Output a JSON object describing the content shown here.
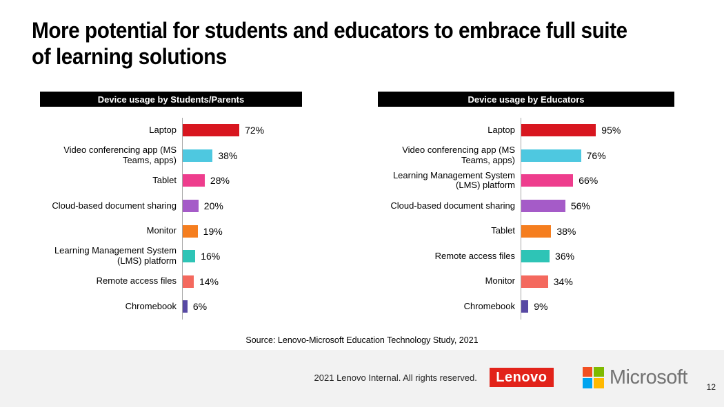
{
  "slide": {
    "title_lines": [
      "More potential for students and educators to embrace full suite",
      "of learning solutions"
    ],
    "source_note": "Source: Lenovo-Microsoft Education Technology Study, 2021",
    "footer": {
      "copyright": "2021 Lenovo Internal. All rights reserved.",
      "lenovo_logo_text": "Lenovo",
      "microsoft_logo_text": "Microsoft",
      "page_number": "12"
    }
  },
  "colors": {
    "header_bg": "#000000",
    "header_text": "#ffffff",
    "axis_line": "#a6a6a6",
    "footer_bg": "#f2f2f2",
    "lenovo_red": "#e2231a",
    "microsoft_gray": "#737373",
    "ms_squares": [
      "#f25022",
      "#7fba00",
      "#00a4ef",
      "#ffb900"
    ]
  },
  "chart_data": [
    {
      "type": "bar",
      "orientation": "horizontal",
      "title": "Device usage by Students/Parents",
      "categories": [
        "Laptop",
        "Video conferencing app (MS Teams, apps)",
        "Tablet",
        "Cloud-based document sharing",
        "Monitor",
        "Learning Management System (LMS) platform",
        "Remote access files",
        "Chromebook"
      ],
      "values": [
        72,
        38,
        28,
        20,
        19,
        16,
        14,
        6
      ],
      "value_labels": [
        "72%",
        "38%",
        "28%",
        "20%",
        "19%",
        "16%",
        "14%",
        "6%"
      ],
      "bar_colors": [
        "#d8161f",
        "#4ec8e0",
        "#ee3d8d",
        "#a55bc8",
        "#f57e1f",
        "#2ec4b6",
        "#f4695e",
        "#5849a4"
      ],
      "xlim": [
        0,
        100
      ],
      "grid": false,
      "legend": "none"
    },
    {
      "type": "bar",
      "orientation": "horizontal",
      "title": "Device usage by Educators",
      "categories": [
        "Laptop",
        "Video conferencing app (MS Teams, apps)",
        "Learning Management System (LMS) platform",
        "Cloud-based document sharing",
        "Tablet",
        "Remote access files",
        "Monitor",
        "Chromebook"
      ],
      "values": [
        95,
        76,
        66,
        56,
        38,
        36,
        34,
        9
      ],
      "value_labels": [
        "95%",
        "76%",
        "66%",
        "56%",
        "38%",
        "36%",
        "34%",
        "9%"
      ],
      "bar_colors": [
        "#d8161f",
        "#4ec8e0",
        "#ee3d8d",
        "#a55bc8",
        "#f57e1f",
        "#2ec4b6",
        "#f4695e",
        "#5849a4"
      ],
      "xlim": [
        0,
        100
      ],
      "grid": false,
      "legend": "none"
    }
  ]
}
